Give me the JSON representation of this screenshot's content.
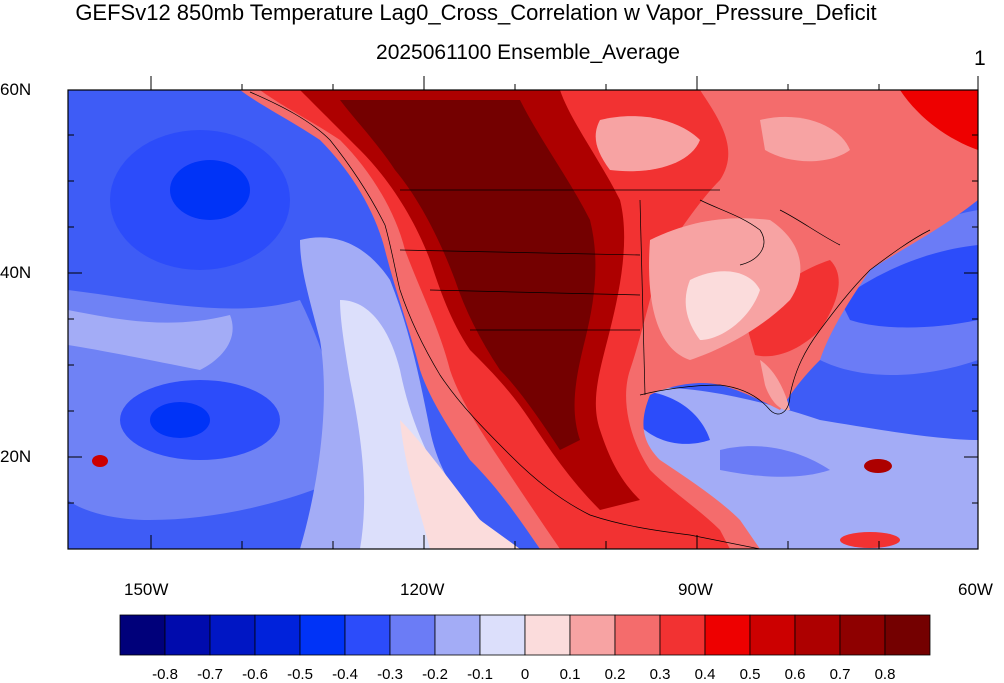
{
  "title": "GEFSv12 850mb Temperature Lag0_Cross_Correlation w Vapor_Pressure_Deficit",
  "subtitle": "2025061100 Ensemble_Average",
  "corner_label": "1",
  "y_ticks": [
    "60N",
    "40N",
    "20N"
  ],
  "x_ticks": [
    "150W",
    "120W",
    "90W",
    "60W"
  ],
  "colorbar": {
    "labels": [
      "-0.8",
      "-0.7",
      "-0.6",
      "-0.5",
      "-0.4",
      "-0.3",
      "-0.2",
      "-0.1",
      "0",
      "0.1",
      "0.2",
      "0.3",
      "0.4",
      "0.5",
      "0.6",
      "0.7",
      "0.8"
    ],
    "colors": [
      "#00007a",
      "#000bad",
      "#0016c4",
      "#0022db",
      "#0033f7",
      "#2c4cfa",
      "#6b7cf6",
      "#a3acf6",
      "#dcdffb",
      "#fbdcdc",
      "#f7a3a3",
      "#f46c6c",
      "#f23232",
      "#ee0000",
      "#cc0000",
      "#ad0000",
      "#8e0000",
      "#740000"
    ]
  },
  "map": {
    "extent": {
      "lon_west": -160,
      "lon_east": -60,
      "lat_south": 10,
      "lat_north": 60
    },
    "ocean_base_color": "#4865f4",
    "land_base_color": "#ee1c1c"
  }
}
